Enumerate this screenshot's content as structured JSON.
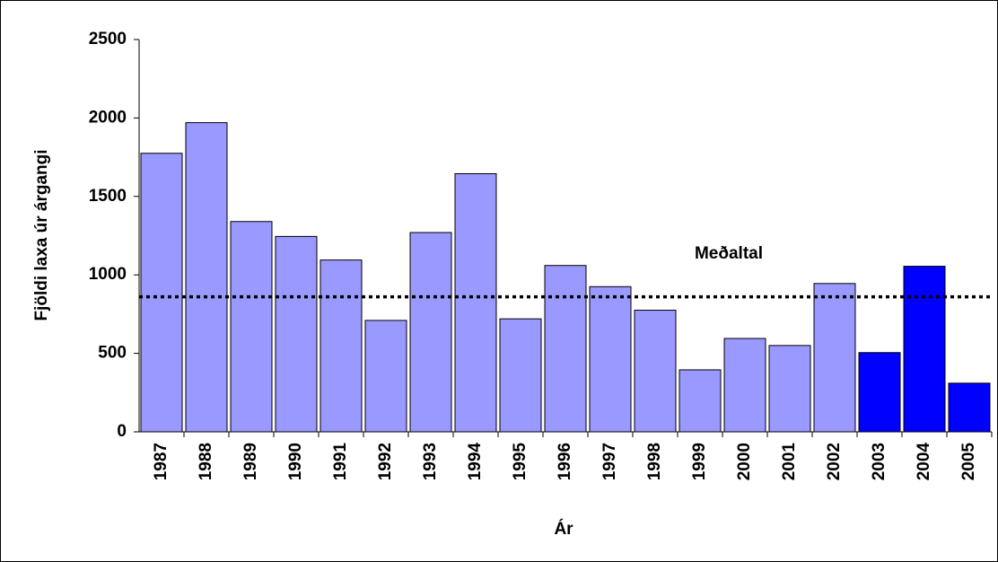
{
  "chart_data": {
    "type": "bar",
    "x_label": "Ár",
    "y_label": "Fjöldi laxa úr árgangi",
    "categories": [
      "1987",
      "1988",
      "1989",
      "1990",
      "1991",
      "1992",
      "1993",
      "1994",
      "1995",
      "1996",
      "1997",
      "1998",
      "1999",
      "2000",
      "2001",
      "2002",
      "2003",
      "2004",
      "2005"
    ],
    "values": [
      1775,
      1970,
      1340,
      1245,
      1095,
      710,
      1270,
      1645,
      720,
      1060,
      925,
      775,
      395,
      595,
      550,
      945,
      505,
      1055,
      310
    ],
    "colors": [
      "#9999ff",
      "#9999ff",
      "#9999ff",
      "#9999ff",
      "#9999ff",
      "#9999ff",
      "#9999ff",
      "#9999ff",
      "#9999ff",
      "#9999ff",
      "#9999ff",
      "#9999ff",
      "#9999ff",
      "#9999ff",
      "#9999ff",
      "#9999ff",
      "#0000ff",
      "#0000ff",
      "#0000ff"
    ],
    "average": {
      "label": "Meðaltal",
      "value": 860
    },
    "ylim": [
      0,
      2500
    ],
    "yticks": [
      0,
      500,
      1000,
      1500,
      2000,
      2500
    ]
  }
}
